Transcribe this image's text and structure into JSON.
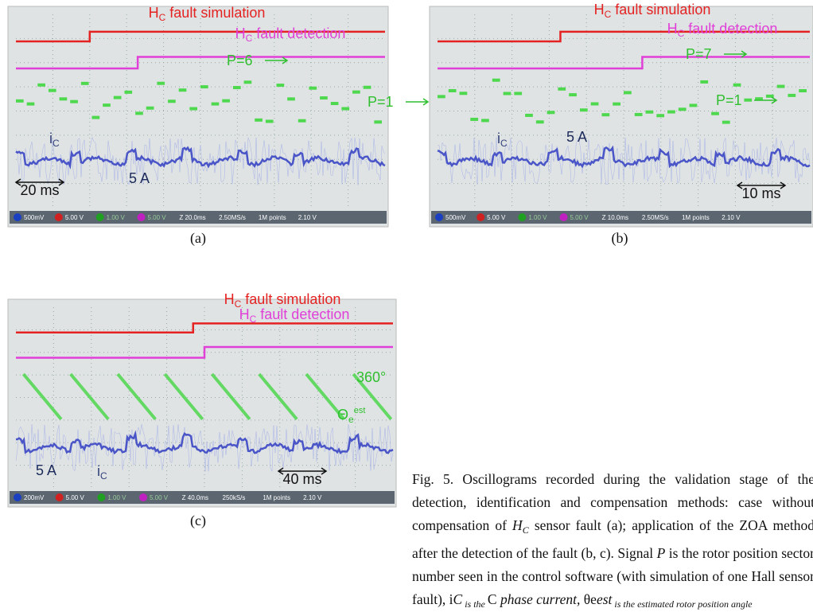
{
  "panels": [
    {
      "label": "(a)",
      "annotations": {
        "simulation": [
          "H",
          "C",
          " fault simulation"
        ],
        "detection": [
          "H",
          "C",
          " fault detection"
        ],
        "p_high": "P=6",
        "p_low": "P=1",
        "current": [
          "i",
          "C"
        ],
        "amp": "5 A",
        "time": "20 ms"
      },
      "status": [
        "500mV",
        "5.00 V",
        "1.00 V",
        "5.00 V",
        "Z 20.0ms",
        "2.50MS/s",
        "1M points",
        "2.10 V"
      ]
    },
    {
      "label": "(b)",
      "annotations": {
        "simulation": [
          "H",
          "C",
          " fault simulation"
        ],
        "detection": [
          "H",
          "C",
          " fault detection"
        ],
        "p_high": "P=7",
        "p_low": "P=1",
        "current": [
          "i",
          "C"
        ],
        "amp": "5 A",
        "time": "10 ms"
      },
      "status": [
        "500mV",
        "5.00 V",
        "1.00 V",
        "5.00 V",
        "Z 10.0ms",
        "2.50MS/s",
        "1M points",
        "2.10 V"
      ]
    },
    {
      "label": "(c)",
      "annotations": {
        "simulation": [
          "H",
          "C",
          " fault simulation"
        ],
        "detection": [
          "H",
          "C",
          " fault detection"
        ],
        "angle": "360°",
        "theta": [
          "Θ",
          "e",
          "est"
        ],
        "amp": "5 A",
        "current": [
          "i",
          "C"
        ],
        "time": "40 ms"
      },
      "status": [
        "200mV",
        "5.00 V",
        "1.00 V",
        "5.00 V",
        "Z 40.0ms",
        "250kS/s",
        "1M points",
        "2.10 V"
      ]
    }
  ],
  "caption": [
    "Fig. 5. Oscillograms recorded during the validation stage of the detection, identification and compensation methods: case without compensation of ",
    "H",
    "C",
    " sensor fault (a); application of the ZOA method after the detection of the fault (b, c). Signal ",
    "P",
    " is the rotor position sector number seen in the control software (with simulation of one Hall sensor fault), ",
    "i",
    "C",
    " is the ",
    "C",
    " phase current, ",
    "θ",
    "e",
    "est",
    " is the estimated rotor position angle"
  ]
}
